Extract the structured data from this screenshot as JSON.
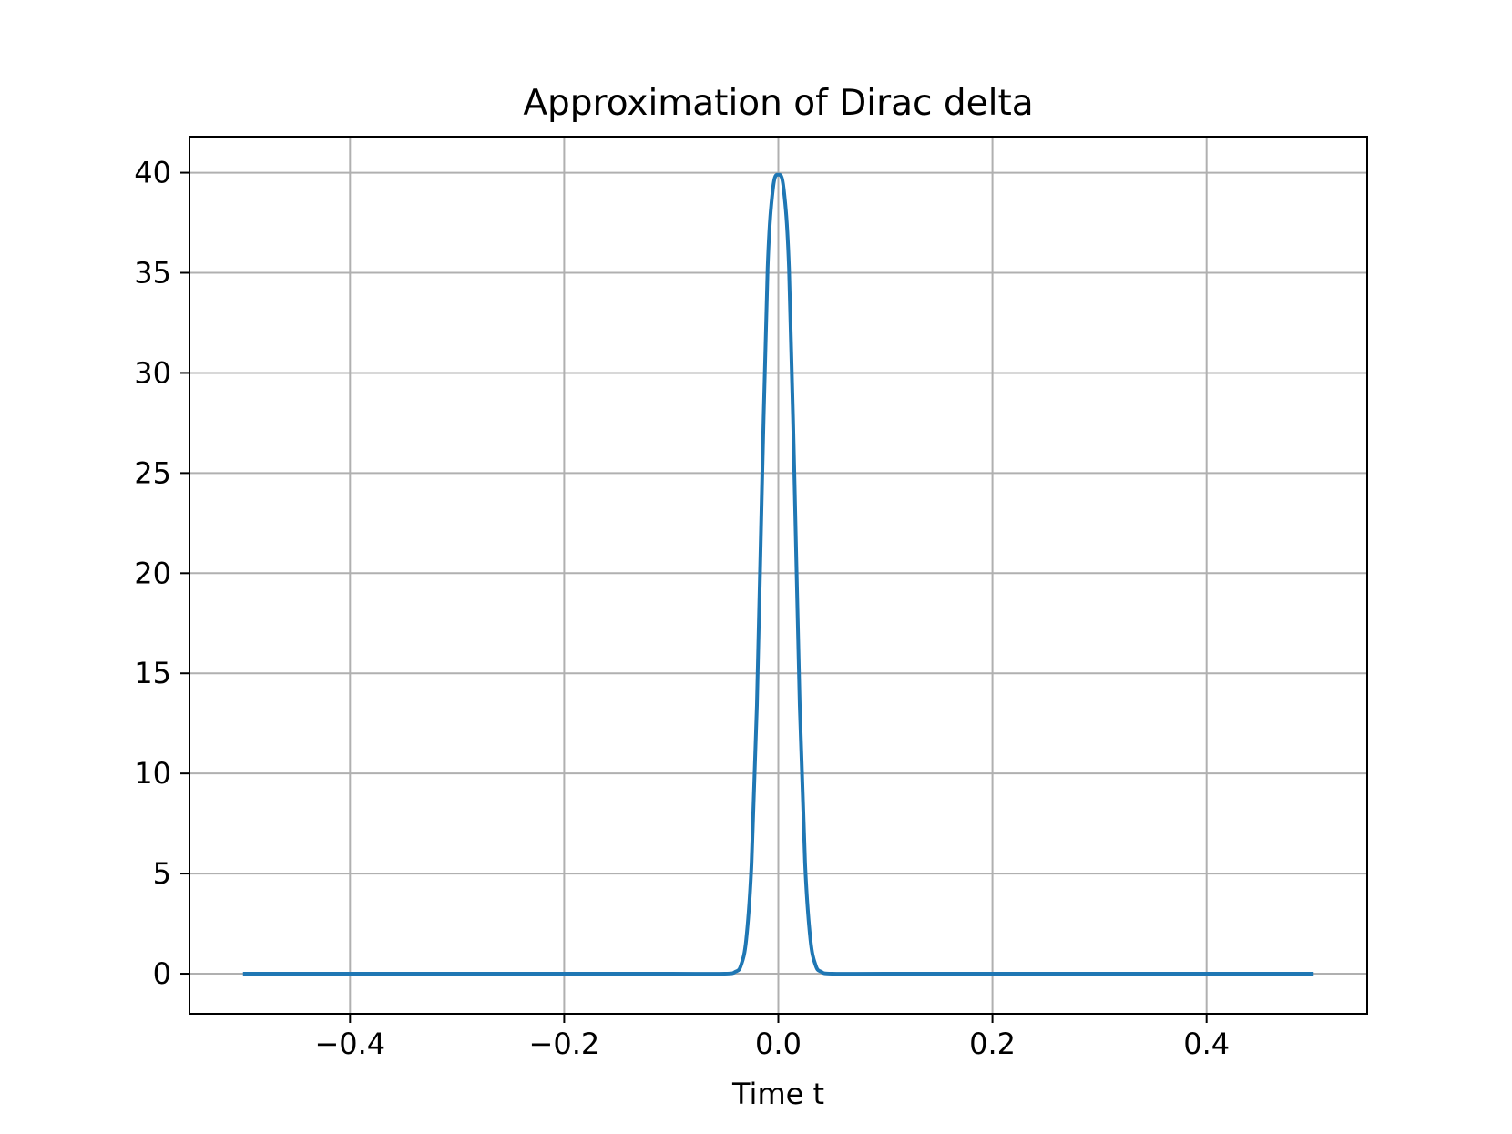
{
  "chart_data": {
    "type": "line",
    "title": "Approximation of Dirac delta",
    "xlabel": "Time t",
    "ylabel": "",
    "xlim": [
      -0.55,
      0.55
    ],
    "ylim": [
      -2,
      41.8
    ],
    "grid": true,
    "x_ticks": [
      -0.4,
      -0.2,
      0.0,
      0.2,
      0.4
    ],
    "x_tick_labels": [
      "−0.4",
      "−0.2",
      "0.0",
      "0.2",
      "0.4"
    ],
    "y_ticks": [
      0,
      5,
      10,
      15,
      20,
      25,
      30,
      35,
      40
    ],
    "y_tick_labels": [
      "0",
      "5",
      "10",
      "15",
      "20",
      "25",
      "30",
      "35",
      "40"
    ],
    "series": [
      {
        "color": "#1f77b4",
        "x": [
          -0.5,
          -0.3,
          -0.1,
          -0.05,
          -0.04,
          -0.035,
          -0.03,
          -0.025,
          -0.02,
          -0.015,
          -0.01,
          -0.005,
          0.0,
          0.005,
          0.01,
          0.015,
          0.02,
          0.025,
          0.03,
          0.035,
          0.04,
          0.05,
          0.1,
          0.3,
          0.5
        ],
        "y": [
          0.0,
          0.0,
          0.0,
          0.0,
          0.1,
          0.4,
          1.7,
          5.5,
          13.4,
          24.9,
          35.2,
          39.2,
          39.9,
          39.2,
          35.2,
          24.9,
          13.4,
          5.5,
          1.7,
          0.4,
          0.1,
          0.0,
          0.0,
          0.0,
          0.0
        ]
      }
    ]
  },
  "colors": {
    "line": "#1f77b4",
    "grid": "#b0b0b0",
    "axes": "#000000"
  }
}
